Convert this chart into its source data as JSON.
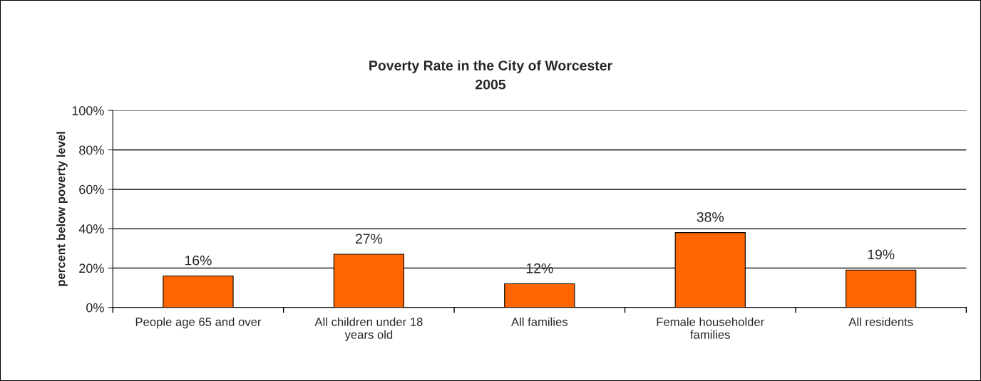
{
  "chart_data": {
    "type": "bar",
    "title": "Poverty Rate in the City of Worcester",
    "subtitle": "2005",
    "ylabel": "percent below poverty level",
    "categories": [
      "People age 65 and over",
      "All children under 18 years old",
      "All families",
      "Female householder families",
      "All residents"
    ],
    "values": [
      16,
      27,
      12,
      38,
      19
    ],
    "value_labels": [
      "16%",
      "27%",
      "12%",
      "38%",
      "19%"
    ],
    "color": "#ff6600",
    "ylim": [
      0,
      100
    ],
    "yticks": [
      {
        "value": 0,
        "label": "0%"
      },
      {
        "value": 20,
        "label": "20%"
      },
      {
        "value": 40,
        "label": "40%"
      },
      {
        "value": 60,
        "label": "60%"
      },
      {
        "value": 80,
        "label": "80%"
      },
      {
        "value": 100,
        "label": "100%"
      }
    ],
    "grid": "y",
    "legend": false
  }
}
